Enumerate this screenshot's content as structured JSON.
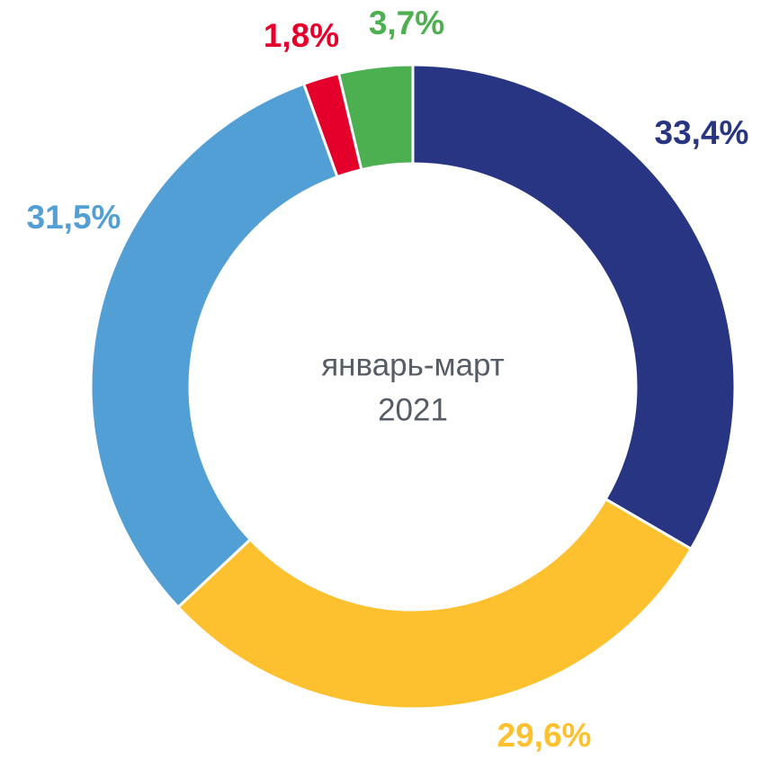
{
  "chart_data": {
    "type": "donut",
    "values": [
      33.4,
      29.6,
      31.5,
      1.8,
      3.7
    ],
    "value_labels": [
      "33,4%",
      "29,6%",
      "31,5%",
      "1,8%",
      "3,7%"
    ],
    "colors": [
      "#283583",
      "#fdc02f",
      "#529fd6",
      "#e4002b",
      "#4caf50"
    ],
    "center_text": [
      "январь-март",
      "2021"
    ]
  }
}
